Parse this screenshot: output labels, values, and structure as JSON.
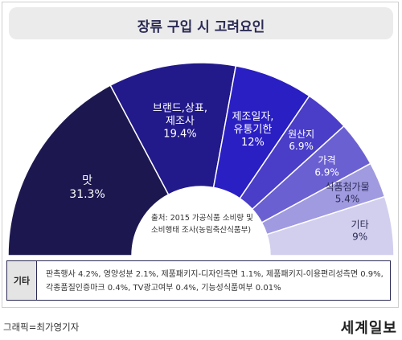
{
  "chart_data": {
    "type": "pie",
    "title": "장류 구입 시 고려요인",
    "slices": [
      {
        "label": "맛",
        "value": 31.3,
        "value_text": "31.3%",
        "color": "#1c184f"
      },
      {
        "label": "브랜드,상표,\n제조사",
        "value": 19.4,
        "value_text": "19.4%",
        "color": "#22198a"
      },
      {
        "label": "제조일자,\n유통기한",
        "value": 12,
        "value_text": "12%",
        "color": "#2a1fc2"
      },
      {
        "label": "원산지",
        "value": 6.9,
        "value_text": "6.9%",
        "color": "#4a3ec8"
      },
      {
        "label": "가격",
        "value": 6.9,
        "value_text": "6.9%",
        "color": "#6b60d2"
      },
      {
        "label": "식품첨가물",
        "value": 5.4,
        "value_text": "5.4%",
        "color": "#a09ae0"
      },
      {
        "label": "기타",
        "value": 9,
        "value_text": "9%",
        "color": "#d2cfee"
      }
    ]
  },
  "source_note": [
    "출처: 2015 가공식품 소비량 및",
    "소비행태 조사(농림축산식품부)"
  ],
  "other_box": {
    "label": "기타",
    "lines": [
      "판촉행사 4.2%, 영양성분 2.1%, 제품패키지-디자인측면 1.1%, 제품패키지-이용편리성측면 0.9%,",
      "각종품질인증마크 0.4%, TV광고여부 0.4%, 기능성식품여부 0.01%"
    ]
  },
  "credit": "그래픽=최가영기자",
  "logo": "세계일보"
}
